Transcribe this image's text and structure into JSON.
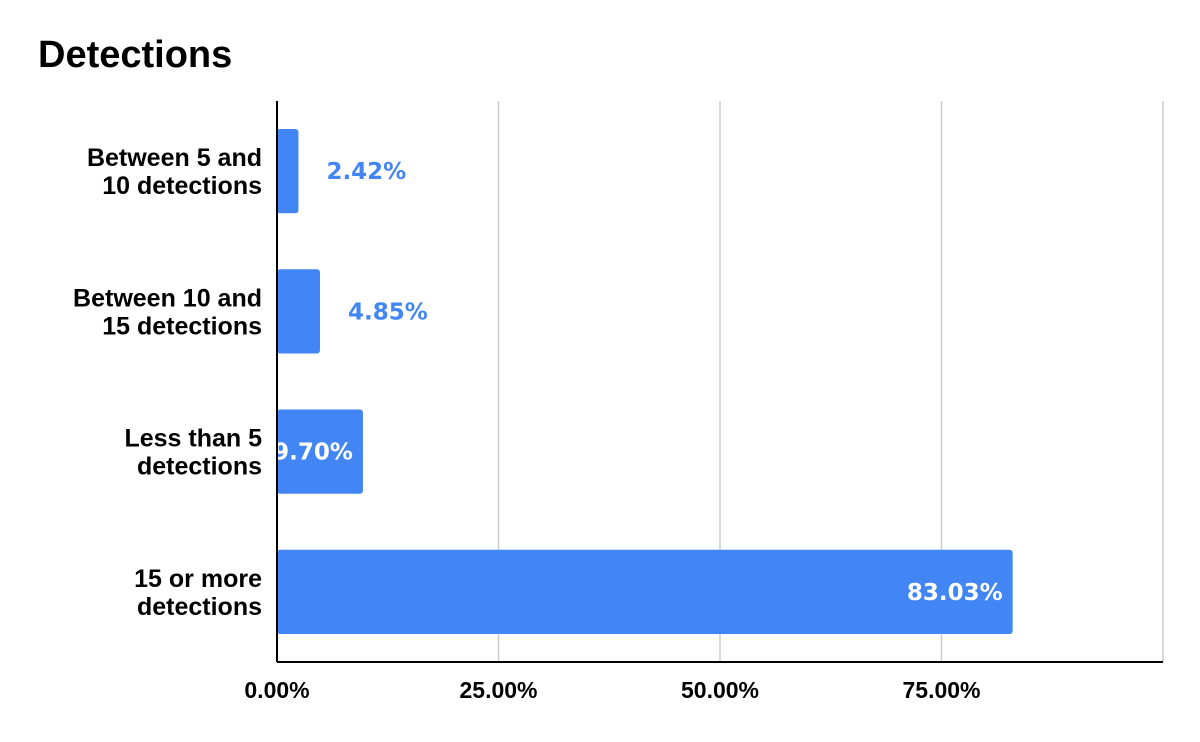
{
  "chart_data": {
    "type": "bar",
    "orientation": "horizontal",
    "title": "Detections",
    "categories": [
      [
        "Between 5 and",
        "10 detections"
      ],
      [
        "Between 10 and",
        "15 detections"
      ],
      [
        "Less than 5",
        "detections"
      ],
      [
        "15 or more",
        "detections"
      ]
    ],
    "values": [
      2.42,
      4.85,
      9.7,
      83.03
    ],
    "data_labels": [
      "2.42%",
      "4.85%",
      "9.70%",
      "83.03%"
    ],
    "xticks": [
      {
        "value": 0,
        "label": "0.00%"
      },
      {
        "value": 25,
        "label": "25.00%"
      },
      {
        "value": 50,
        "label": "50.00%"
      },
      {
        "value": 75,
        "label": "75.00%"
      }
    ],
    "xlim": [
      0,
      100
    ],
    "grid": true,
    "legend": "none",
    "colors": {
      "bar": "#4285f4",
      "label_outside": "#4285f4",
      "label_inside": "#ffffff",
      "grid": "#cccccc",
      "axis": "#000000"
    }
  }
}
